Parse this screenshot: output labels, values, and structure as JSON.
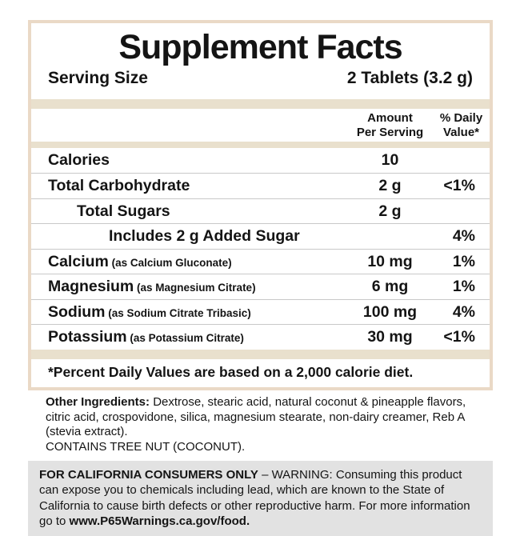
{
  "label": {
    "title": "Supplement Facts",
    "serving_size": {
      "label": "Serving Size",
      "value": "2 Tablets (3.2 g)"
    },
    "columns": {
      "amount": "Amount\nPer Serving",
      "daily_value": "% Daily\nValue*"
    },
    "rows": [
      {
        "name": "Calories",
        "detail": "",
        "amount": "10",
        "dv": "",
        "indent": 0
      },
      {
        "name": "Total Carbohydrate",
        "detail": "",
        "amount": "2 g",
        "dv": "<1%",
        "indent": 0
      },
      {
        "name": "Total Sugars",
        "detail": "",
        "amount": "2 g",
        "dv": "",
        "indent": 1
      },
      {
        "name": "Includes 2 g Added Sugar",
        "detail": "",
        "amount": "",
        "dv": "4%",
        "indent": 2
      },
      {
        "name": "Calcium",
        "detail": "(as Calcium Gluconate)",
        "amount": "10 mg",
        "dv": "1%",
        "indent": 0
      },
      {
        "name": "Magnesium",
        "detail": "(as Magnesium Citrate)",
        "amount": "6 mg",
        "dv": "1%",
        "indent": 0
      },
      {
        "name": "Sodium",
        "detail": "(as Sodium Citrate Tribasic)",
        "amount": "100 mg",
        "dv": "4%",
        "indent": 0
      },
      {
        "name": "Potassium",
        "detail": "(as Potassium Citrate)",
        "amount": "30 mg",
        "dv": "<1%",
        "indent": 0
      }
    ],
    "footnote": "*Percent Daily Values are based on a 2,000 calorie diet."
  },
  "other_ingredients": {
    "label": "Other Ingredients:",
    "text": "Dextrose, stearic acid, natural coconut & pineapple flavors, citric acid, crospovidone, silica, magnesium stearate, non-dairy creamer, Reb A (stevia extract).",
    "contains": "CONTAINS TREE NUT (COCONUT)."
  },
  "california_warning": {
    "bold_intro": "FOR CALIFORNIA CONSUMERS ONLY",
    "text": " – WARNING: Consuming this product can expose you to chemicals including lead, which are known to the State of California to cause birth defects or other reproductive harm. For more information go to ",
    "link": "www.P65Warnings.ca.gov/food."
  },
  "colors": {
    "panel_border": "#ead9c6",
    "divider_bar": "#e9e0cd",
    "row_divider": "#c9c9c9",
    "warning_background": "#e2e2e2",
    "text": "#141414"
  }
}
